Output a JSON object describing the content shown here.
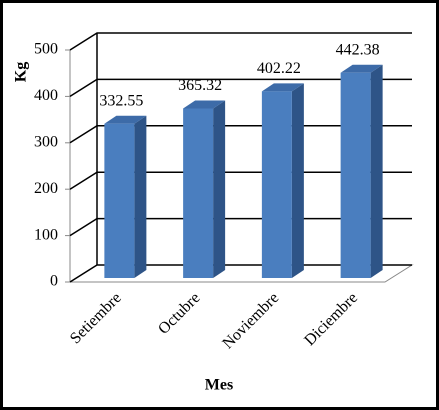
{
  "chart_data": {
    "type": "bar",
    "x_label": "Mes",
    "y_label": "Kg",
    "categories": [
      "Setiembre",
      "Octubre",
      "Noviembre",
      "Diciembre"
    ],
    "values": [
      332.55,
      365.32,
      402.22,
      442.38
    ],
    "color": "#4a7ebf",
    "ylim": [
      0,
      500
    ],
    "yticks": [
      0,
      100,
      200,
      300,
      400,
      500
    ],
    "grid": true
  }
}
